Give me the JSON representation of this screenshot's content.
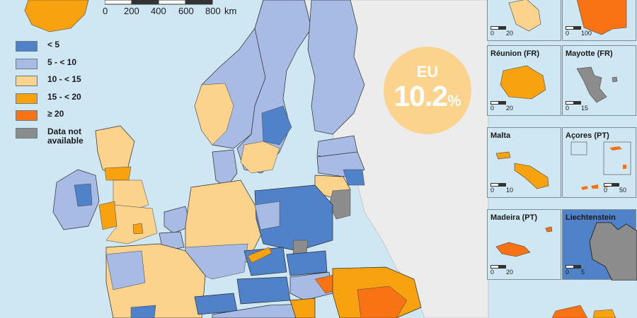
{
  "scale": {
    "ticks": [
      "0",
      "200",
      "400",
      "600",
      "800"
    ],
    "unit": "km"
  },
  "legend": [
    {
      "label": "< 5",
      "color": "#4f82c9"
    },
    {
      "label": "5 - < 10",
      "color": "#a8bbe4"
    },
    {
      "label": "10 - < 15",
      "color": "#fbd38d"
    },
    {
      "label": "15 - < 20",
      "color": "#f7a20e"
    },
    {
      "label": "≥ 20",
      "color": "#f97214"
    },
    {
      "label": "Data not available",
      "color": "#8c8c8c"
    }
  ],
  "eu_badge": {
    "label": "EU",
    "value": "10.2",
    "unit": "%"
  },
  "colors": {
    "sea": "#cfe7f3",
    "non_eu_land": "#ececec",
    "border": "#2b2b2b",
    "badge": "#fbd38d"
  },
  "insets": [
    {
      "title": "",
      "scale": [
        "0",
        "20"
      ],
      "fill": "#fbd38d"
    },
    {
      "title": "",
      "scale": [
        "0",
        "100"
      ],
      "fill": "#f97214"
    },
    {
      "title": "Réunion (FR)",
      "scale": [
        "0",
        "20"
      ],
      "fill": "#f7a20e"
    },
    {
      "title": "Mayotte (FR)",
      "scale": [
        "0",
        "15"
      ],
      "fill": "#8c8c8c"
    },
    {
      "title": "Malta",
      "scale": [
        "0",
        "10"
      ],
      "fill": "#f7a20e"
    },
    {
      "title": "Açores (PT)",
      "scale": [
        "0",
        "50"
      ],
      "fill": "#f97214"
    },
    {
      "title": "Madeira (PT)",
      "scale": [
        "0",
        "20"
      ],
      "fill": "#f97214"
    },
    {
      "title": "Liechtenstein",
      "scale": [
        "0",
        "5"
      ],
      "fill": "#8c8c8c"
    }
  ]
}
